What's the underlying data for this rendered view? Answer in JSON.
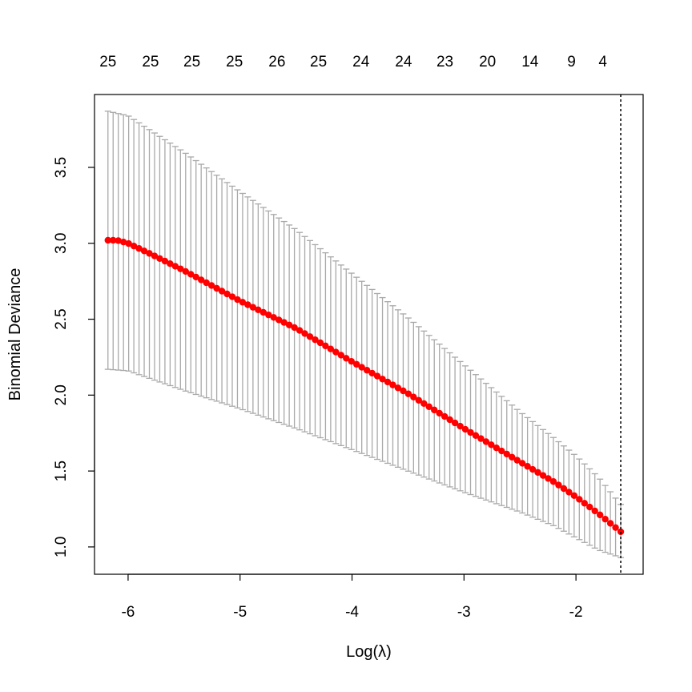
{
  "chart_data": {
    "type": "scatter",
    "xlabel": "Log(λ)",
    "ylabel": "Binomial Deviance",
    "xlim": [
      -6.3,
      -1.4
    ],
    "ylim": [
      0.82,
      3.98
    ],
    "x_ticks": [
      -6,
      -5,
      -4,
      -3,
      -2
    ],
    "x_tick_labels": [
      "-6",
      "-5",
      "-4",
      "-3",
      "-2"
    ],
    "y_ticks": [
      1.0,
      1.5,
      2.0,
      2.5,
      3.0,
      3.5
    ],
    "y_tick_labels": [
      "1.0",
      "1.5",
      "2.0",
      "2.5",
      "3.0",
      "3.5"
    ],
    "top_axis": {
      "x": [
        -6.18,
        -5.8,
        -5.43,
        -5.05,
        -4.67,
        -4.3,
        -3.92,
        -3.54,
        -3.17,
        -2.79,
        -2.41,
        -2.04,
        -1.76
      ],
      "labels": [
        "25",
        "25",
        "25",
        "25",
        "26",
        "25",
        "24",
        "24",
        "23",
        "20",
        "14",
        "9",
        "4"
      ]
    },
    "vline_x": -1.6,
    "grid": false,
    "colors": {
      "points": "#ff0000",
      "error_bars": "#a9a9a9",
      "vline": "#000000"
    },
    "series": [
      {
        "x_range": [
          -6.18,
          -1.6
        ],
        "n_points": 100,
        "curve_x": [
          -6.18,
          -6.1,
          -6.0,
          -5.8,
          -5.5,
          -5.0,
          -4.5,
          -4.0,
          -3.5,
          -3.0,
          -2.5,
          -2.2,
          -2.0,
          -1.8,
          -1.6
        ],
        "curve_y": [
          3.02,
          3.02,
          3.0,
          2.93,
          2.82,
          2.62,
          2.44,
          2.22,
          2.01,
          1.78,
          1.56,
          1.43,
          1.33,
          1.22,
          1.1
        ],
        "lower_x": [
          -6.18,
          -6.0,
          -5.5,
          -5.0,
          -4.5,
          -4.0,
          -3.5,
          -3.0,
          -2.5,
          -2.2,
          -2.0,
          -1.8,
          -1.6
        ],
        "lower_y": [
          2.17,
          2.16,
          2.03,
          1.91,
          1.78,
          1.64,
          1.5,
          1.36,
          1.23,
          1.14,
          1.06,
          0.98,
          0.93
        ],
        "upper_x": [
          -6.18,
          -6.0,
          -5.5,
          -5.0,
          -4.5,
          -4.0,
          -3.5,
          -3.0,
          -2.5,
          -2.2,
          -2.0,
          -1.8,
          -1.6
        ],
        "upper_y": [
          3.87,
          3.84,
          3.6,
          3.34,
          3.09,
          2.8,
          2.51,
          2.2,
          1.89,
          1.72,
          1.6,
          1.46,
          1.28
        ]
      }
    ]
  }
}
